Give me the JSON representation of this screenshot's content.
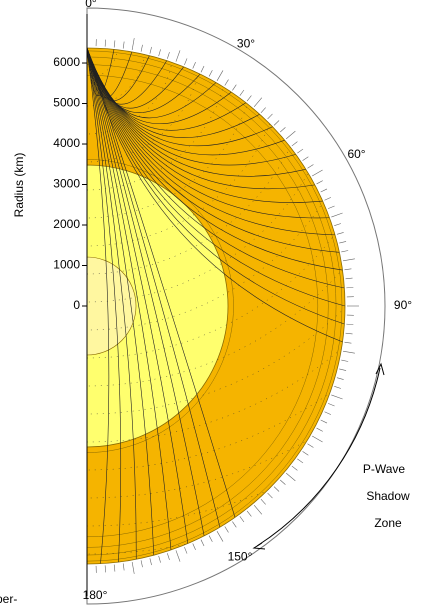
{
  "radius_axis": {
    "label": "Radius (km)",
    "ticks": [
      0,
      1000,
      2000,
      3000,
      4000,
      5000,
      6000
    ]
  },
  "angle_labels": [
    {
      "value": 0,
      "label": "0°"
    },
    {
      "value": 30,
      "label": "30°"
    },
    {
      "value": 60,
      "label": "60°"
    },
    {
      "value": 90,
      "label": "90°"
    },
    {
      "value": 150,
      "label": "150°"
    },
    {
      "value": 180,
      "label": "180°"
    }
  ],
  "annotation": [
    "P-Wave",
    "Shadow",
    "Zone"
  ],
  "footer_fragment": "per-"
}
